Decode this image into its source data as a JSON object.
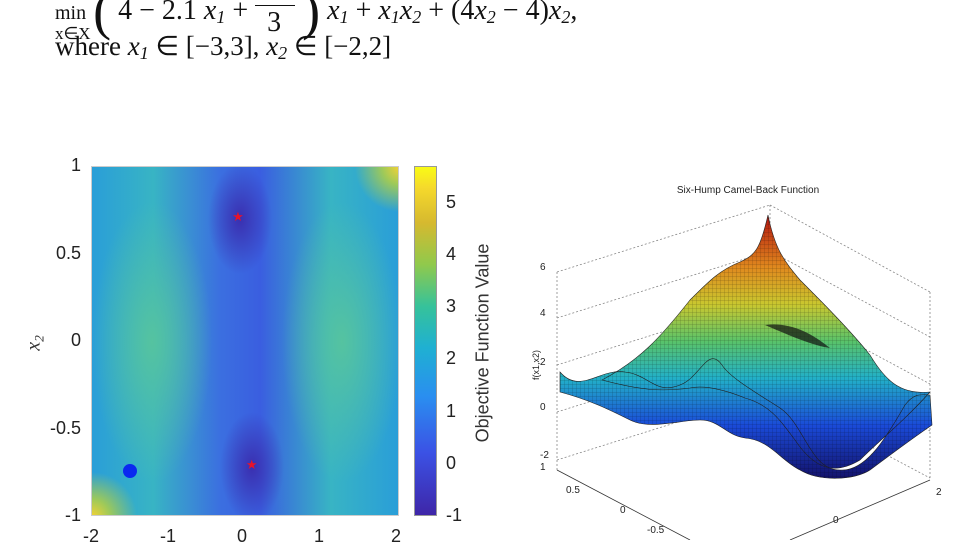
{
  "equation": {
    "minimize": "min",
    "min_subscript": "x∈X",
    "term_a": "4 − 2.1",
    "term_b": "+",
    "fraction_denominator": "3",
    "term_c": "+",
    "term_d": "+ (4",
    "term_e": "− 4)",
    "term_f": ",",
    "where": "where",
    "x1_domain": "∈ [−3,3],",
    "x2_domain": "∈ [−2,2]"
  },
  "chart_data": [
    {
      "type": "heatmap",
      "title": "",
      "xlabel": "",
      "ylabel_symbol": "x",
      "ylabel_subscript": "2",
      "x_ticks": [
        "-2",
        "-1",
        "0",
        "1",
        "2"
      ],
      "y_ticks": [
        "1",
        "0.5",
        "0",
        "-0.5",
        "-1"
      ],
      "xlim": [
        -2,
        2
      ],
      "ylim": [
        -1,
        1
      ],
      "colorbar_label": "Objective Function Value",
      "colorbar_ticks": [
        "5",
        "4",
        "3",
        "2",
        "1",
        "0",
        "-1"
      ],
      "colorbar_range": [
        -1,
        5.7
      ],
      "global_minima": [
        {
          "x": -0.09,
          "y": 0.71
        },
        {
          "x": 0.09,
          "y": -0.71
        }
      ],
      "start_point": {
        "x": -1.5,
        "y": -0.74
      },
      "colors": {
        "minima_marker": "#e8132a",
        "start_marker": "#0a28f0"
      }
    },
    {
      "type": "surface",
      "title": "Six-Hump Camel-Back Function",
      "zlabel": "f(x1,x2)",
      "z_ticks": [
        "6",
        "4",
        "2",
        "0",
        "-2"
      ],
      "x_ticks": [
        "0",
        "2"
      ],
      "y_ticks": [
        "1",
        "0.5",
        "0",
        "-0.5"
      ],
      "zlim": [
        -2,
        6
      ]
    }
  ]
}
